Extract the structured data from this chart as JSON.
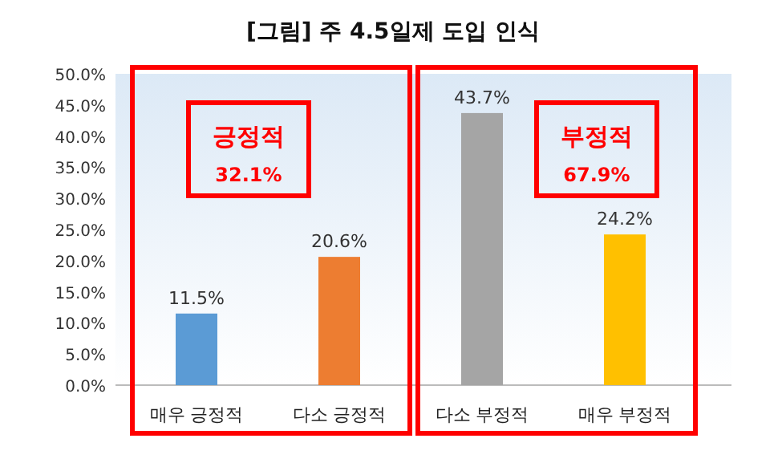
{
  "chart_data": {
    "type": "bar",
    "title": "[그림] 주 4.5일제 도입 인식",
    "categories": [
      "매우 긍정적",
      "다소 긍정적",
      "다소 부정적",
      "매우 부정적"
    ],
    "values": [
      11.5,
      20.6,
      43.7,
      24.2
    ],
    "colors": [
      "#5b9bd5",
      "#ed7d31",
      "#a5a5a5",
      "#ffc000"
    ],
    "value_labels": [
      "11.5%",
      "20.6%",
      "43.7%",
      "24.2%"
    ],
    "ylim": [
      0,
      50
    ],
    "yticks": [
      {
        "value": 0,
        "label": "0.0%"
      },
      {
        "value": 5,
        "label": "5.0%"
      },
      {
        "value": 10,
        "label": "10.0%"
      },
      {
        "value": 15,
        "label": "15.0%"
      },
      {
        "value": 20,
        "label": "20.0%"
      },
      {
        "value": 25,
        "label": "25.0%"
      },
      {
        "value": 30,
        "label": "30.0%"
      },
      {
        "value": 35,
        "label": "35.0%"
      },
      {
        "value": 40,
        "label": "40.0%"
      },
      {
        "value": 45,
        "label": "45.0%"
      },
      {
        "value": 50,
        "label": "50.0%"
      }
    ],
    "annotations": [
      "긍정적",
      "32.1%",
      "부정적",
      "67.9%"
    ]
  }
}
